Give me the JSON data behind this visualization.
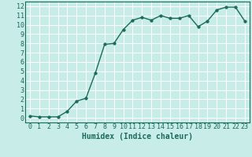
{
  "x": [
    0,
    1,
    2,
    3,
    4,
    5,
    6,
    7,
    8,
    9,
    10,
    11,
    12,
    13,
    14,
    15,
    16,
    17,
    18,
    19,
    20,
    21,
    22,
    23
  ],
  "y": [
    0.2,
    0.1,
    0.1,
    0.1,
    0.7,
    1.8,
    2.1,
    4.8,
    7.9,
    8.0,
    9.5,
    10.5,
    10.8,
    10.5,
    11.0,
    10.7,
    10.7,
    11.0,
    9.8,
    10.4,
    11.6,
    11.9,
    11.9,
    10.4
  ],
  "xlim": [
    -0.5,
    23.5
  ],
  "ylim": [
    -0.5,
    12.5
  ],
  "xlabel": "Humidex (Indice chaleur)",
  "xticks": [
    0,
    1,
    2,
    3,
    4,
    5,
    6,
    7,
    8,
    9,
    10,
    11,
    12,
    13,
    14,
    15,
    16,
    17,
    18,
    19,
    20,
    21,
    22,
    23
  ],
  "yticks": [
    0,
    1,
    2,
    3,
    4,
    5,
    6,
    7,
    8,
    9,
    10,
    11,
    12
  ],
  "line_color": "#1a6b5a",
  "marker_color": "#1a6b5a",
  "bg_color": "#c8ece8",
  "grid_color": "#ffffff",
  "label_color": "#1a6b5a",
  "xlabel_fontsize": 7,
  "tick_fontsize": 6,
  "marker_size": 2.5,
  "line_width": 1.0,
  "spine_color": "#1a6b5a"
}
